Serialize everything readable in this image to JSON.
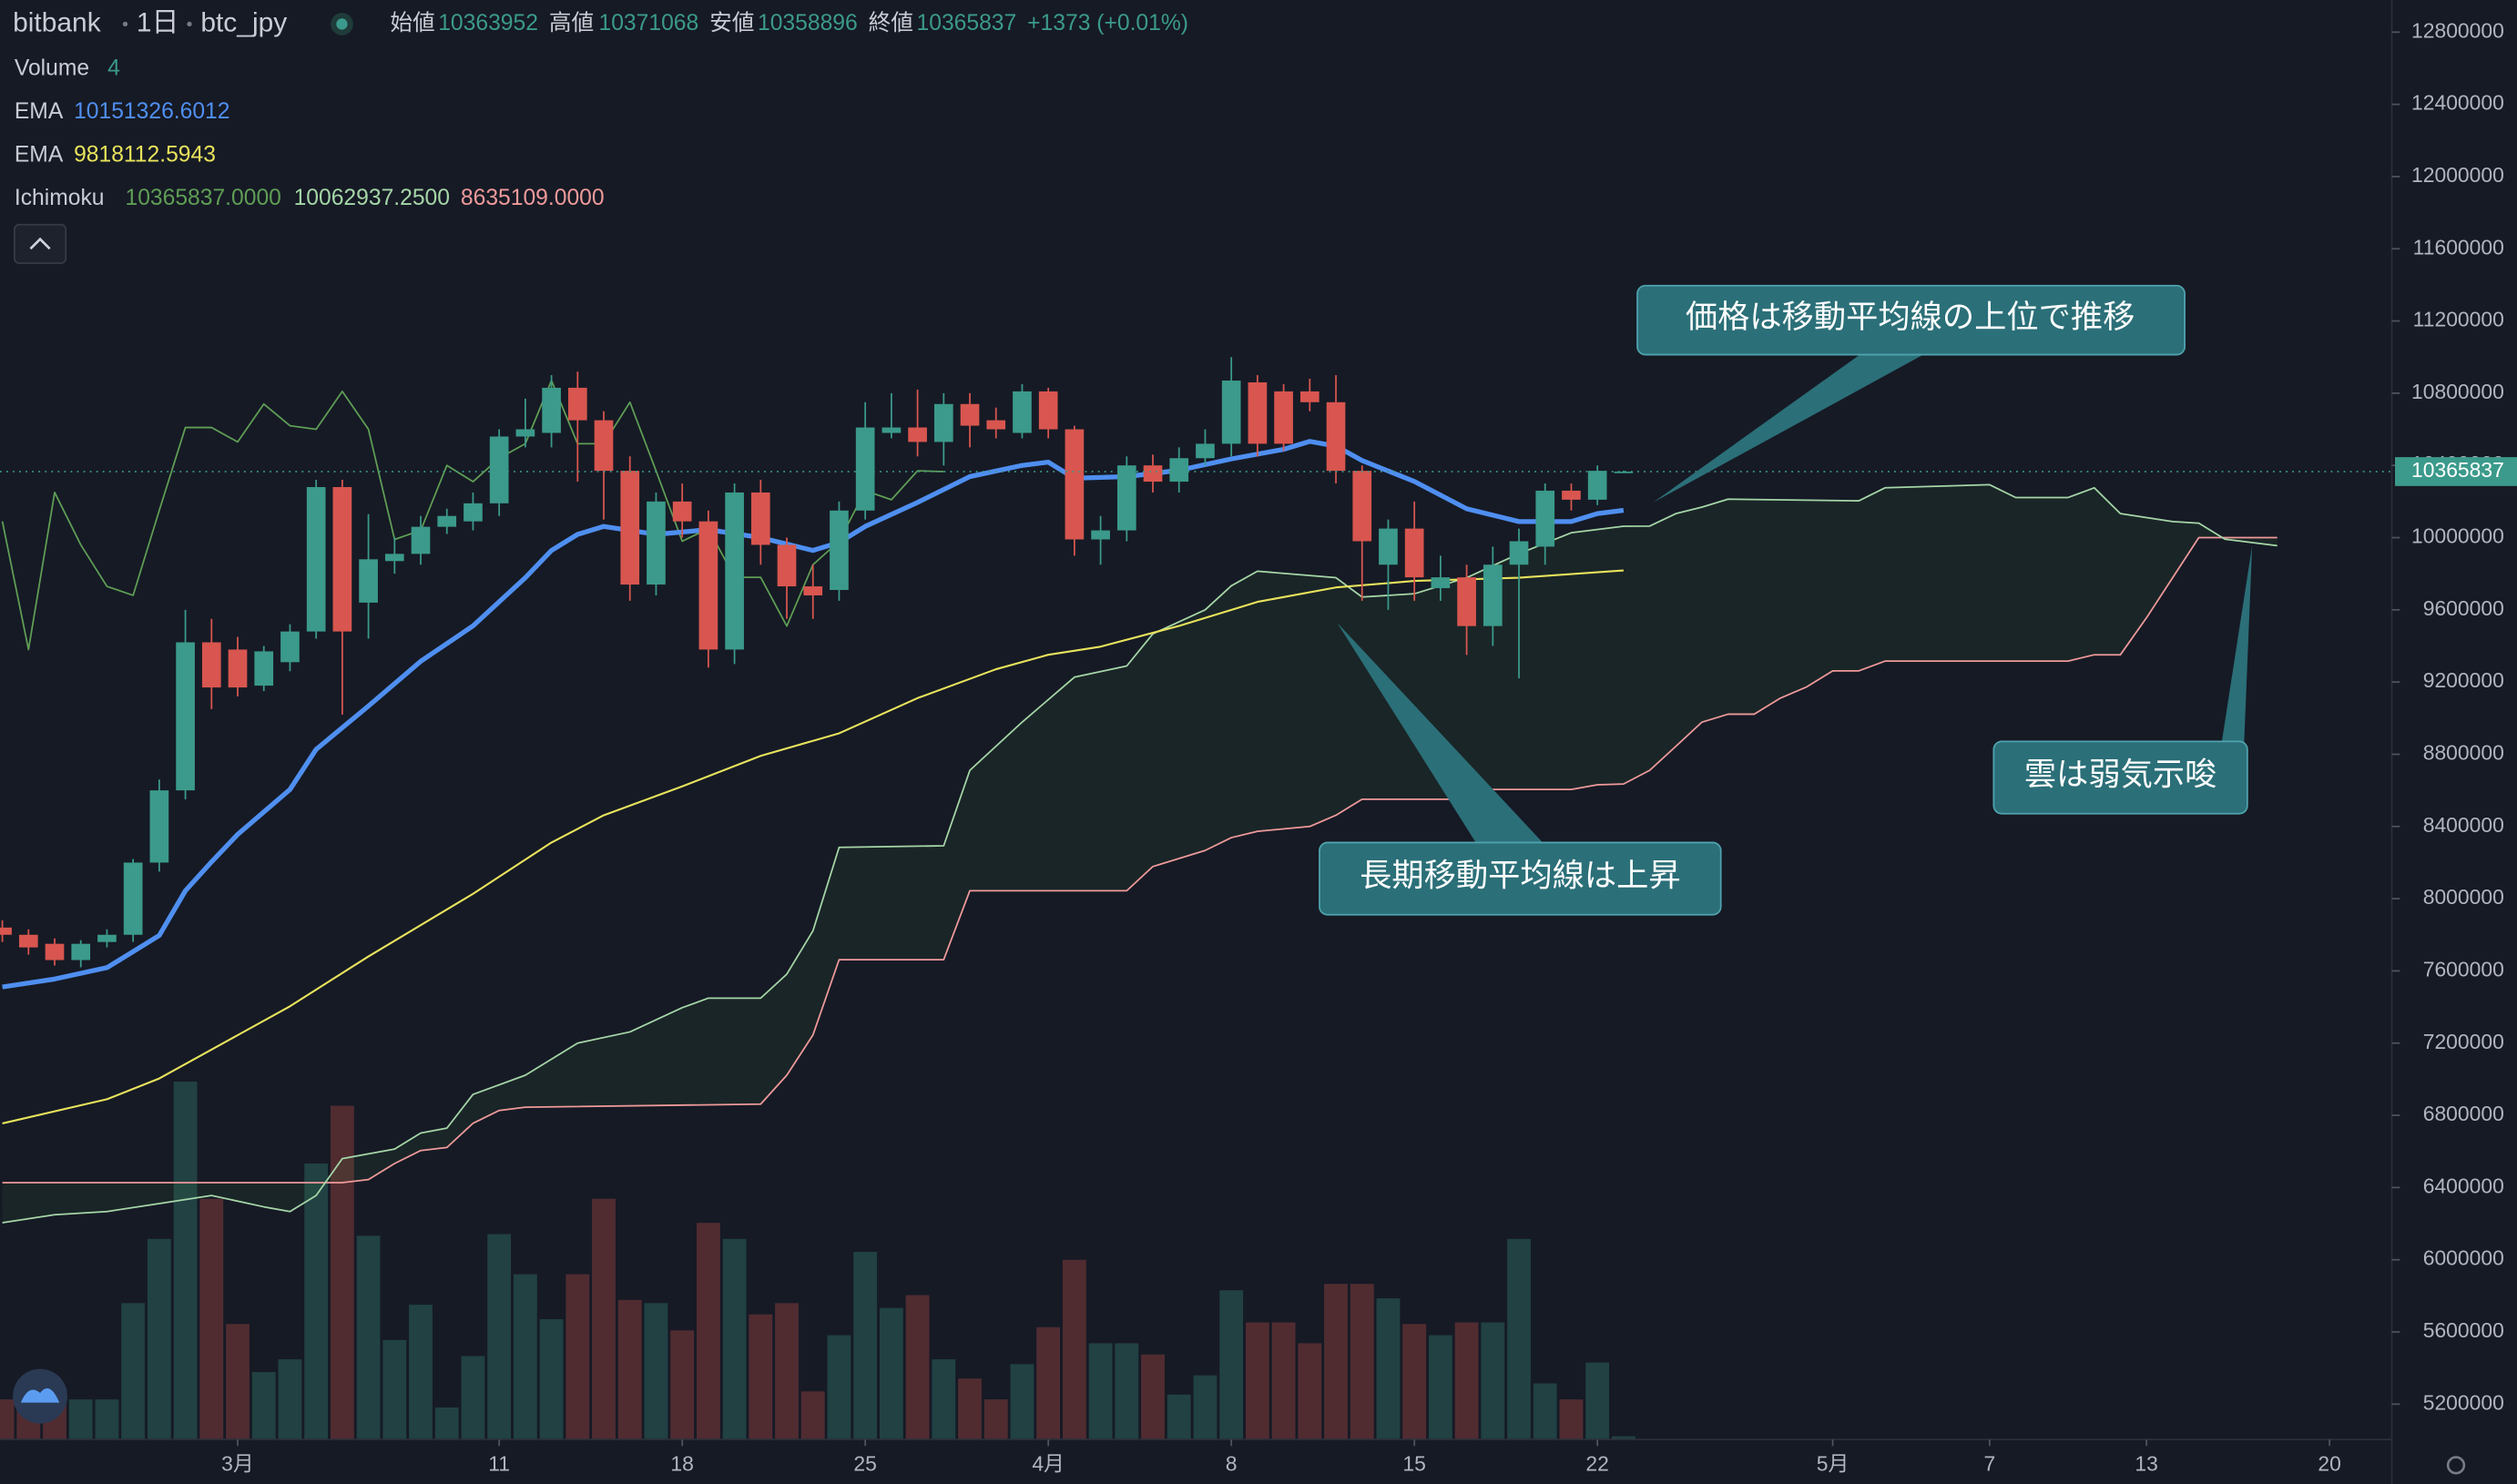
{
  "chart_data": {
    "type": "candlestick",
    "title": "bitbank",
    "interval": "1日",
    "symbol": "btc_jpy",
    "ohlc_labels": [
      "始値",
      "高値",
      "安値",
      "終値"
    ],
    "change_label": "+1373 (+0.01%)",
    "up_color": "#3b9a8b",
    "down_color": "#d8564f",
    "xlim": [
      -9.09,
      82.38
    ],
    "xticks": [
      {
        "value": 0,
        "label": "3月"
      },
      {
        "value": 10,
        "label": "11"
      },
      {
        "value": 17,
        "label": "18"
      },
      {
        "value": 24,
        "label": "25"
      },
      {
        "value": 31,
        "label": "4月"
      },
      {
        "value": 38,
        "label": "8"
      },
      {
        "value": 45,
        "label": "15"
      },
      {
        "value": 52,
        "label": "22"
      },
      {
        "value": 61,
        "label": "5月"
      },
      {
        "value": 67,
        "label": "7"
      },
      {
        "value": 73,
        "label": "13"
      },
      {
        "value": 80,
        "label": "20"
      }
    ],
    "ylim": [
      5004000,
      12978000
    ],
    "yticks": [
      5200000,
      5600000,
      6000000,
      6400000,
      6800000,
      7200000,
      7600000,
      8000000,
      8400000,
      8800000,
      9200000,
      9600000,
      10000000,
      10400000,
      10800000,
      11200000,
      11600000,
      12000000,
      12400000,
      12800000
    ],
    "grid": false,
    "x": [
      -9,
      -8,
      -7,
      -6,
      -5,
      -4,
      -3,
      -2,
      -1,
      0,
      1,
      2,
      3,
      4,
      5,
      6,
      7,
      8,
      9,
      10,
      11,
      12,
      13,
      14,
      15,
      16,
      17,
      18,
      19,
      20,
      21,
      22,
      23,
      24,
      25,
      26,
      27,
      28,
      29,
      30,
      31,
      32,
      33,
      34,
      35,
      36,
      37,
      38,
      39,
      40,
      41,
      42,
      43,
      44,
      45,
      46,
      47,
      48,
      49,
      50,
      51,
      52,
      53
    ],
    "open": [
      7840000,
      7800000,
      7750000,
      7660000,
      7760000,
      7800000,
      8200000,
      8600000,
      9420000,
      9380000,
      9180000,
      9310000,
      9480000,
      10280000,
      9640000,
      9870000,
      9910000,
      10060000,
      10090000,
      10190000,
      10560000,
      10580000,
      10830000,
      10650000,
      10370000,
      9740000,
      10200000,
      10090000,
      9380000,
      10250000,
      9960000,
      9730000,
      9710000,
      10150000,
      10580000,
      10610000,
      10530000,
      10740000,
      10650000,
      10580000,
      10810000,
      10600000,
      9990000,
      10040000,
      10400000,
      10310000,
      10440000,
      10520000,
      10860000,
      10810000,
      10810000,
      10750000,
      10370000,
      9850000,
      10050000,
      9720000,
      9780000,
      9510000,
      9850000,
      9950000,
      10260000,
      10210000,
      10363952
    ],
    "high": [
      7880000,
      7830000,
      7780000,
      7770000,
      7830000,
      8220000,
      8660000,
      9600000,
      9550000,
      9450000,
      9400000,
      9520000,
      10320000,
      10320000,
      10130000,
      10000000,
      10120000,
      10160000,
      10250000,
      10600000,
      10770000,
      10900000,
      10920000,
      10700000,
      10450000,
      10250000,
      10300000,
      10150000,
      10300000,
      10320000,
      10000000,
      9850000,
      10200000,
      10750000,
      10800000,
      10820000,
      10800000,
      10800000,
      10720000,
      10850000,
      10830000,
      10620000,
      10120000,
      10450000,
      10460000,
      10500000,
      10600000,
      11000000,
      10900000,
      10850000,
      10880000,
      10900000,
      10400000,
      10100000,
      10200000,
      9900000,
      9850000,
      9950000,
      10050000,
      10300000,
      10300000,
      10400000,
      10371068
    ],
    "low": [
      7760000,
      7690000,
      7630000,
      7620000,
      7730000,
      7760000,
      8150000,
      8550000,
      9050000,
      9120000,
      9150000,
      9260000,
      9440000,
      9020000,
      9440000,
      9800000,
      9850000,
      10020000,
      10040000,
      10120000,
      10500000,
      10500000,
      10310000,
      10100000,
      9650000,
      9680000,
      10000000,
      9280000,
      9300000,
      9850000,
      9550000,
      9550000,
      9650000,
      10100000,
      10550000,
      10450000,
      10400000,
      10500000,
      10550000,
      10550000,
      10550000,
      9900000,
      9850000,
      9980000,
      10250000,
      10250000,
      10400000,
      10450000,
      10450000,
      10480000,
      10700000,
      10300000,
      9650000,
      9600000,
      9650000,
      9650000,
      9350000,
      9400000,
      9220000,
      9850000,
      10150000,
      10180000,
      10358896
    ],
    "close": [
      7800000,
      7730000,
      7660000,
      7750000,
      7800000,
      8200000,
      8600000,
      9420000,
      9170000,
      9170000,
      9370000,
      9480000,
      10280000,
      9480000,
      9880000,
      9910000,
      10060000,
      10120000,
      10190000,
      10560000,
      10600000,
      10830000,
      10650000,
      10370000,
      9740000,
      10200000,
      10090000,
      9380000,
      10250000,
      9960000,
      9730000,
      9680000,
      10150000,
      10610000,
      10610000,
      10530000,
      10740000,
      10620000,
      10600000,
      10810000,
      10600000,
      9990000,
      10040000,
      10400000,
      10310000,
      10440000,
      10520000,
      10870000,
      10520000,
      10520000,
      10750000,
      10370000,
      9980000,
      10050000,
      9780000,
      9780000,
      9510000,
      9850000,
      9980000,
      10260000,
      10210000,
      10370000,
      10365837
    ],
    "volume": {
      "name": "Volume",
      "vlim": [
        0,
        1000
      ],
      "values": [
        50,
        40,
        50,
        50,
        50,
        170,
        250,
        446,
        300,
        144,
        84,
        100,
        344,
        416,
        254,
        124,
        168,
        40,
        104,
        256,
        206,
        150,
        206,
        300,
        174,
        170,
        136,
        270,
        250,
        156,
        170,
        60,
        130,
        234,
        164,
        180,
        100,
        76,
        50,
        94,
        140,
        224,
        120,
        120,
        106,
        56,
        80,
        186,
        146,
        146,
        120,
        194,
        194,
        176,
        144,
        130,
        146,
        146,
        250,
        70,
        50,
        96,
        4
      ]
    },
    "series": [
      {
        "name": "EMA",
        "color": "#4f8ff0",
        "x": [
          -9,
          -7,
          -5,
          -4,
          -3,
          -2,
          -1,
          0,
          2,
          3,
          5,
          7,
          9,
          11,
          12,
          13,
          14,
          16,
          18,
          20,
          22,
          23,
          24,
          26,
          28,
          30,
          31,
          32,
          34,
          36,
          38,
          40,
          41,
          42,
          43,
          45,
          47,
          49,
          51,
          52,
          53
        ],
        "values": [
          7511000,
          7555000,
          7618000,
          7707000,
          7796000,
          8044000,
          8204000,
          8356000,
          8605000,
          8827000,
          9067000,
          9315000,
          9511000,
          9778000,
          9929000,
          10018000,
          10062000,
          10018000,
          10044000,
          10000000,
          9929000,
          9973000,
          10062000,
          10195000,
          10338000,
          10400000,
          10418000,
          10329000,
          10338000,
          10373000,
          10436000,
          10489000,
          10533000,
          10507000,
          10427000,
          10311000,
          10160000,
          10089000,
          10089000,
          10133000,
          10151326.6012
        ]
      },
      {
        "name": "EMA",
        "color": "#e8e35c",
        "x": [
          -9,
          -5,
          -3,
          0,
          2,
          5,
          9,
          12,
          14,
          17,
          20,
          23,
          26,
          29,
          31,
          33,
          36,
          39,
          42,
          45,
          49,
          53
        ],
        "values": [
          6755000,
          6889000,
          7004000,
          7244000,
          7404000,
          7680000,
          8027000,
          8311000,
          8462000,
          8622000,
          8791000,
          8916000,
          9111000,
          9271000,
          9351000,
          9396000,
          9511000,
          9644000,
          9724000,
          9760000,
          9778000,
          9818112.5943
        ]
      }
    ],
    "ichimoku": {
      "name": "Ichimoku",
      "value_labels": [
        "10365837.0000",
        "10062937.2500",
        "8635109.0000"
      ],
      "lines": [
        {
          "color": "#5f9e55",
          "x": [
            -9,
            -8,
            -7,
            -6,
            -5,
            -4,
            -3,
            -2,
            -1,
            0,
            1,
            2,
            3,
            4,
            5,
            6,
            7,
            8,
            9,
            10,
            11,
            12,
            13,
            14,
            15,
            16,
            17,
            18,
            19,
            20,
            21,
            22,
            23,
            24,
            25,
            26,
            27
          ],
          "values": [
            10090000,
            9380000,
            10250000,
            9960000,
            9730000,
            9680000,
            10150000,
            10610000,
            10610000,
            10530000,
            10740000,
            10620000,
            10600000,
            10810000,
            10600000,
            9990000,
            10040000,
            10400000,
            10310000,
            10440000,
            10520000,
            10870000,
            10520000,
            10520000,
            10750000,
            10370000,
            9980000,
            10050000,
            9780000,
            9780000,
            9510000,
            9850000,
            9980000,
            10260000,
            10210000,
            10370000,
            10365837
          ]
        },
        {
          "color": "#a5d6a7",
          "x": [
            -9,
            -7,
            -5,
            -3,
            -1,
            1,
            2,
            3,
            4,
            6,
            7,
            8,
            9,
            11,
            13,
            15,
            17,
            18,
            20,
            21,
            22,
            23,
            27,
            28,
            30,
            32,
            34,
            35,
            37,
            38,
            39,
            42,
            43,
            45,
            47,
            49,
            51,
            53,
            54,
            55,
            56,
            57,
            62,
            63,
            67,
            68,
            70,
            71,
            72,
            74,
            75,
            76,
            78
          ],
          "values": [
            6205000,
            6249000,
            6267000,
            6311000,
            6356000,
            6293000,
            6267000,
            6356000,
            6560000,
            6613000,
            6702000,
            6729000,
            6916000,
            7022000,
            7200000,
            7262000,
            7396000,
            7449000,
            7449000,
            7582000,
            7822000,
            8284000,
            8293000,
            8711000,
            8978000,
            9227000,
            9289000,
            9467000,
            9600000,
            9733000,
            9814000,
            9778000,
            9671000,
            9689000,
            9778000,
            9911000,
            10027000,
            10062937.25,
            10064000,
            10133000,
            10169000,
            10213000,
            10204000,
            10276000,
            10293000,
            10222000,
            10222000,
            10276000,
            10133000,
            10089000,
            10080000,
            9991000,
            9955000
          ]
        },
        {
          "color": "#ef9a9a",
          "x": [
            -9,
            4,
            5,
            6,
            7,
            8,
            9,
            10,
            11,
            20,
            21,
            22,
            23,
            27,
            28,
            34,
            35,
            37,
            38,
            39,
            41,
            42,
            43,
            47,
            48,
            51,
            52,
            53,
            54,
            55,
            56,
            57,
            58,
            59,
            60,
            61,
            62,
            63,
            70,
            71,
            72,
            73,
            74,
            75,
            78
          ],
          "values": [
            6427000,
            6427000,
            6444000,
            6533000,
            6605000,
            6622000,
            6756000,
            6827000,
            6845000,
            6862000,
            7022000,
            7245000,
            7662000,
            7662000,
            8044000,
            8044000,
            8178000,
            8267000,
            8338000,
            8373000,
            8400000,
            8462000,
            8551000,
            8551000,
            8605000,
            8605000,
            8631000,
            8635109,
            8711000,
            8844000,
            8978000,
            9022000,
            9022000,
            9111000,
            9173000,
            9262000,
            9262000,
            9316000,
            9316000,
            9351000,
            9351000,
            9556000,
            9778000,
            10000000,
            10000000
          ]
        }
      ]
    },
    "annotations": [
      "価格は移動平均線の上位で推移",
      "長期移動平均線は上昇",
      "雲は弱気示唆"
    ]
  }
}
